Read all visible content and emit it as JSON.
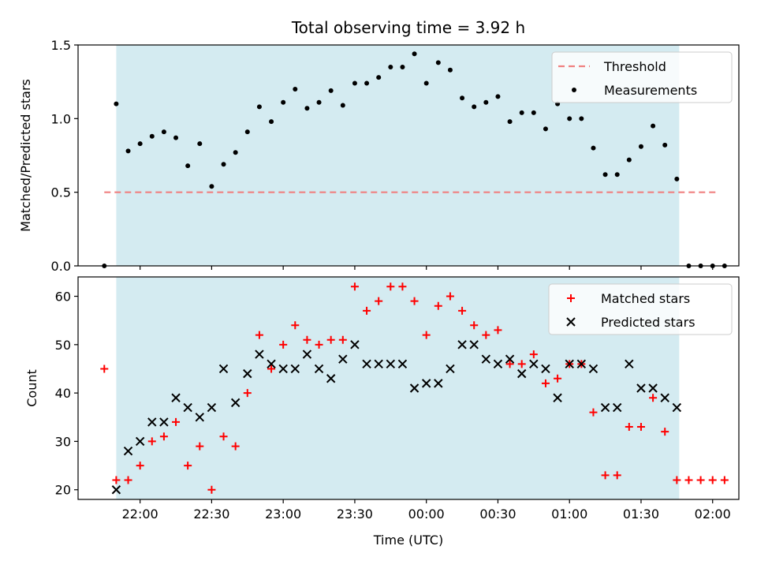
{
  "title": "Total observing time = 3.92 h",
  "colors": {
    "shade": "#d4ebf1",
    "threshold": "#f08080",
    "measurement": "#000000",
    "matched": "#ff0000",
    "predicted": "#000000"
  },
  "chart_data": [
    {
      "type": "scatter",
      "name": "ratio-panel",
      "ylabel": "Matched/Predicted stars",
      "xlabel": "",
      "ylim": [
        0,
        1.5
      ],
      "yticks": [
        0.0,
        0.5,
        1.0,
        1.5
      ],
      "ytick_labels": [
        "0.0",
        "0.5",
        "1.0",
        "1.5"
      ],
      "observing_window": {
        "start": "21:50",
        "end": "01:46"
      },
      "legend": {
        "position": "upper-right",
        "entries": [
          "Threshold",
          "Measurements"
        ]
      },
      "threshold": {
        "name": "Threshold",
        "value": 0.5,
        "x_start": "21:45",
        "x_end": "02:02"
      },
      "series": [
        {
          "name": "Measurements",
          "x": [
            "21:45",
            "21:50",
            "21:55",
            "22:00",
            "22:05",
            "22:10",
            "22:15",
            "22:20",
            "22:25",
            "22:30",
            "22:35",
            "22:40",
            "22:45",
            "22:50",
            "22:55",
            "23:00",
            "23:05",
            "23:10",
            "23:15",
            "23:20",
            "23:25",
            "23:30",
            "23:35",
            "23:40",
            "23:45",
            "23:50",
            "23:55",
            "00:00",
            "00:05",
            "00:10",
            "00:15",
            "00:20",
            "00:25",
            "00:30",
            "00:35",
            "00:40",
            "00:45",
            "00:50",
            "00:55",
            "01:00",
            "01:05",
            "01:10",
            "01:15",
            "01:20",
            "01:25",
            "01:30",
            "01:35",
            "01:40",
            "01:45",
            "01:50",
            "01:55",
            "02:00",
            "02:05"
          ],
          "values": [
            0.0,
            1.1,
            0.78,
            0.83,
            0.88,
            0.91,
            0.87,
            0.68,
            0.83,
            0.54,
            0.69,
            0.77,
            0.91,
            1.08,
            0.98,
            1.11,
            1.2,
            1.07,
            1.11,
            1.19,
            1.09,
            1.24,
            1.24,
            1.28,
            1.35,
            1.35,
            1.44,
            1.24,
            1.38,
            1.33,
            1.14,
            1.08,
            1.11,
            1.15,
            0.98,
            1.04,
            1.04,
            0.93,
            1.1,
            1.0,
            1.0,
            0.8,
            0.62,
            0.62,
            0.72,
            0.81,
            0.95,
            0.82,
            0.59,
            0.0,
            0.0,
            0.0,
            0.0
          ]
        }
      ]
    },
    {
      "type": "scatter",
      "name": "count-panel",
      "ylabel": "Count",
      "xlabel": "Time (UTC)",
      "ylim": [
        18,
        64
      ],
      "yticks": [
        20,
        30,
        40,
        50,
        60
      ],
      "ytick_labels": [
        "20",
        "30",
        "40",
        "50",
        "60"
      ],
      "x_tick_times": [
        "22:00",
        "22:30",
        "23:00",
        "23:30",
        "00:00",
        "00:30",
        "01:00",
        "01:30",
        "02:00"
      ],
      "x_tick_labels": [
        "22:00",
        "22:30",
        "23:00",
        "23:30",
        "00:00",
        "00:30",
        "01:00",
        "01:30",
        "02:00"
      ],
      "observing_window": {
        "start": "21:50",
        "end": "01:46"
      },
      "legend": {
        "position": "upper-right",
        "entries": [
          "Matched stars",
          "Predicted stars"
        ]
      },
      "series": [
        {
          "name": "Matched stars",
          "x": [
            "21:45",
            "21:50",
            "21:55",
            "22:00",
            "22:05",
            "22:10",
            "22:15",
            "22:20",
            "22:25",
            "22:30",
            "22:35",
            "22:40",
            "22:45",
            "22:50",
            "22:55",
            "23:00",
            "23:05",
            "23:10",
            "23:15",
            "23:20",
            "23:25",
            "23:30",
            "23:35",
            "23:40",
            "23:45",
            "23:50",
            "23:55",
            "00:00",
            "00:05",
            "00:10",
            "00:15",
            "00:20",
            "00:25",
            "00:30",
            "00:35",
            "00:40",
            "00:45",
            "00:50",
            "00:55",
            "01:00",
            "01:05",
            "01:10",
            "01:15",
            "01:20",
            "01:25",
            "01:30",
            "01:35",
            "01:40",
            "01:45",
            "01:50",
            "01:55",
            "02:00",
            "02:05"
          ],
          "values": [
            45,
            22,
            22,
            25,
            30,
            31,
            34,
            25,
            29,
            20,
            31,
            29,
            40,
            52,
            45,
            50,
            54,
            51,
            50,
            51,
            51,
            62,
            57,
            59,
            62,
            62,
            59,
            52,
            58,
            60,
            57,
            54,
            52,
            53,
            46,
            46,
            48,
            42,
            43,
            46,
            46,
            36,
            23,
            23,
            33,
            33,
            39,
            32,
            22,
            22,
            22,
            22,
            22
          ]
        },
        {
          "name": "Predicted stars",
          "x": [
            "21:50",
            "21:55",
            "22:00",
            "22:05",
            "22:10",
            "22:15",
            "22:20",
            "22:25",
            "22:30",
            "22:35",
            "22:40",
            "22:45",
            "22:50",
            "22:55",
            "23:00",
            "23:05",
            "23:10",
            "23:15",
            "23:20",
            "23:25",
            "23:30",
            "23:35",
            "23:40",
            "23:45",
            "23:50",
            "23:55",
            "00:00",
            "00:05",
            "00:10",
            "00:15",
            "00:20",
            "00:25",
            "00:30",
            "00:35",
            "00:40",
            "00:45",
            "00:50",
            "00:55",
            "01:00",
            "01:05",
            "01:10",
            "01:15",
            "01:20",
            "01:25",
            "01:30",
            "01:35",
            "01:40",
            "01:45"
          ],
          "values": [
            20,
            28,
            30,
            34,
            34,
            39,
            37,
            35,
            37,
            45,
            38,
            44,
            48,
            46,
            45,
            45,
            48,
            45,
            43,
            47,
            50,
            46,
            46,
            46,
            46,
            41,
            42,
            42,
            45,
            50,
            50,
            47,
            46,
            47,
            44,
            46,
            45,
            39,
            46,
            46,
            45,
            37,
            37,
            46,
            41,
            41,
            39,
            37
          ]
        }
      ]
    }
  ]
}
